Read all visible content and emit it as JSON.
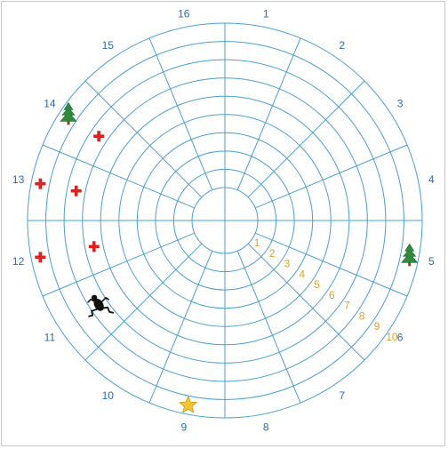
{
  "board": {
    "sector_count": 16,
    "ring_count": 10,
    "line_color": "#4a9fd0",
    "sector_label_color": "#2e6aa8",
    "ring_label_color": "#e0a020",
    "sector_labels": [
      "1",
      "2",
      "3",
      "4",
      "5",
      "6",
      "7",
      "8",
      "9",
      "10",
      "11",
      "12",
      "13",
      "14",
      "15",
      "16"
    ],
    "ring_labels": [
      "1",
      "2",
      "3",
      "4",
      "5",
      "6",
      "7",
      "8",
      "9",
      "10"
    ]
  },
  "pieces": [
    {
      "kind": "tree",
      "icon": "tree-icon",
      "sector": 14,
      "ring": 10
    },
    {
      "kind": "tree",
      "icon": "tree-icon",
      "sector": 5,
      "ring": 10
    },
    {
      "kind": "cross",
      "icon": "red-cross-icon",
      "sector": 14,
      "ring": 8
    },
    {
      "kind": "cross",
      "icon": "red-cross-icon",
      "sector": 13,
      "ring": 10
    },
    {
      "kind": "cross",
      "icon": "red-cross-icon",
      "sector": 13,
      "ring": 8
    },
    {
      "kind": "cross",
      "icon": "red-cross-icon",
      "sector": 12,
      "ring": 7
    },
    {
      "kind": "cross",
      "icon": "red-cross-icon",
      "sector": 12,
      "ring": 10
    },
    {
      "kind": "frog",
      "icon": "frog-icon",
      "sector": 11,
      "ring": 8
    },
    {
      "kind": "star",
      "icon": "star-icon",
      "sector": 9,
      "ring": 10
    }
  ]
}
